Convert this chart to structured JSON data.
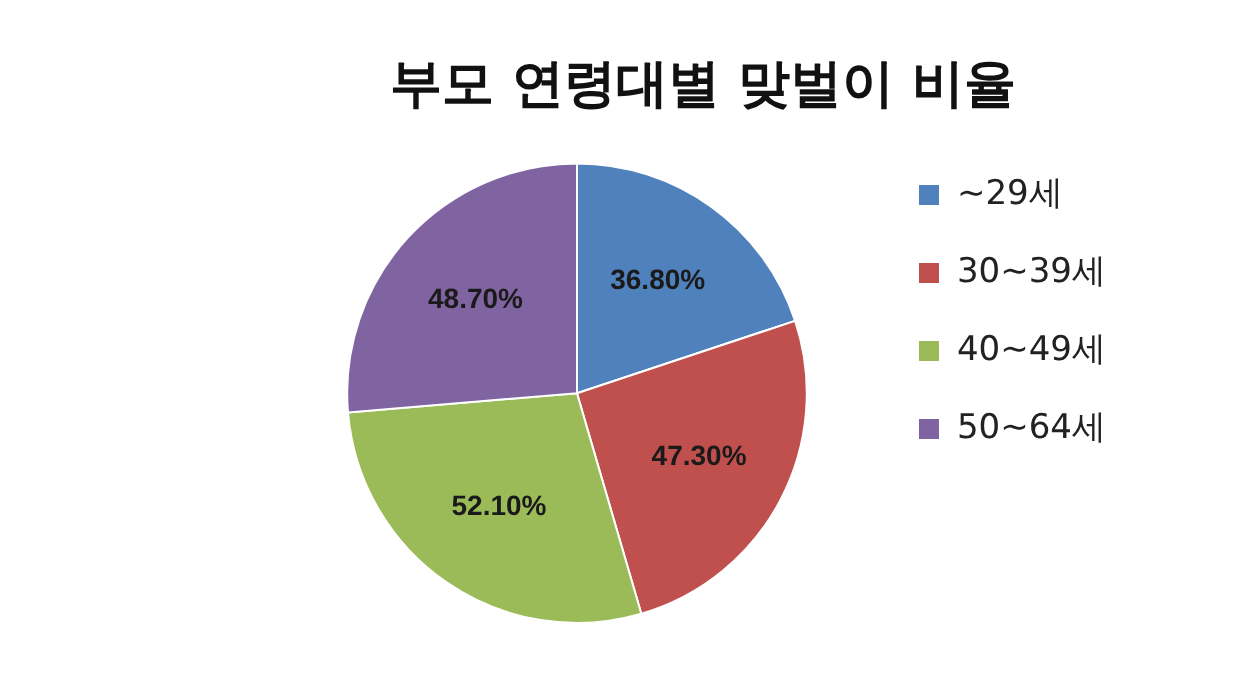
{
  "chart_data": {
    "type": "pie",
    "title": "부모 연령대별 맞벌이 비율",
    "categories": [
      "~29세",
      "30~39세",
      "40~49세",
      "50~64세"
    ],
    "values": [
      36.8,
      47.3,
      52.1,
      48.7
    ],
    "value_labels": [
      "36.80%",
      "47.30%",
      "52.10%",
      "48.70%"
    ],
    "colors": [
      "#4f81bd",
      "#c0504d",
      "#9bbb59",
      "#8064a2"
    ],
    "legend": "right"
  }
}
